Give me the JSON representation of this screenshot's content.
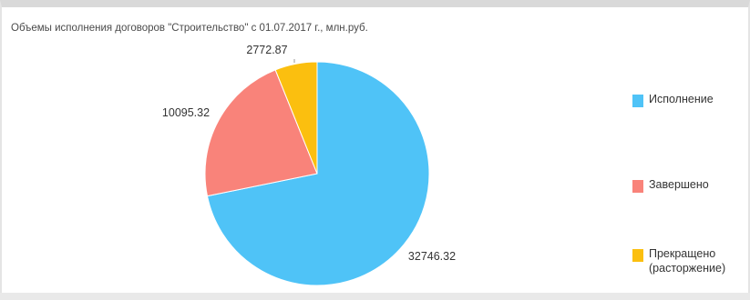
{
  "chart_data": {
    "type": "pie",
    "title": "Объемы исполнения договоров \"Строительство\" с 01.07.2017 г., млн.руб.",
    "series": [
      {
        "name": "Исполнение",
        "value": 32746.32,
        "value_label": "32746.32",
        "color": "#4fc3f7"
      },
      {
        "name": "Завершено",
        "value": 10095.32,
        "value_label": "10095.32",
        "color": "#f9837a"
      },
      {
        "name": "Прекращено (расторжение)",
        "value": 2772.87,
        "value_label": "2772.87",
        "color": "#fbbf0f"
      }
    ],
    "legend": "right",
    "start_angle_deg": 0,
    "direction": "clockwise"
  }
}
